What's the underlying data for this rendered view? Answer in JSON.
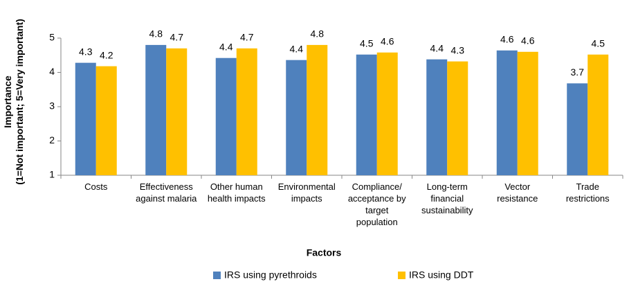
{
  "chart_data": {
    "type": "bar",
    "y_label": "Importance\n(1=Not important; 5=Very important)",
    "x_label": "Factors",
    "categories": [
      "Costs",
      "Effectiveness\nagainst malaria",
      "Other human\nhealth impacts",
      "Environmental\nimpacts",
      "Compliance/\nacceptance by\ntarget\npopulation",
      "Long-term\nfinancial\nsustainability",
      "Vector\nresistance",
      "Trade\nrestrictions"
    ],
    "series": [
      {
        "name": "IRS using pyrethroids",
        "color": "#4f81bd",
        "values": [
          4.28,
          4.8,
          4.42,
          4.36,
          4.52,
          4.38,
          4.64,
          3.68
        ],
        "value_labels": [
          "4.3",
          "4.8",
          "4.4",
          "4.4",
          "4.5",
          "4.4",
          "4.6",
          "3.7"
        ]
      },
      {
        "name": "IRS using DDT",
        "color": "#ffc000",
        "values": [
          4.18,
          4.7,
          4.7,
          4.8,
          4.58,
          4.32,
          4.6,
          4.52
        ],
        "value_labels": [
          "4.2",
          "4.7",
          "4.7",
          "4.8",
          "4.6",
          "4.3",
          "4.6",
          "4.5"
        ]
      }
    ],
    "ylim": [
      1,
      5
    ],
    "yticks": [
      1,
      2,
      3,
      4,
      5
    ],
    "grid": false,
    "legend": "bottom"
  }
}
